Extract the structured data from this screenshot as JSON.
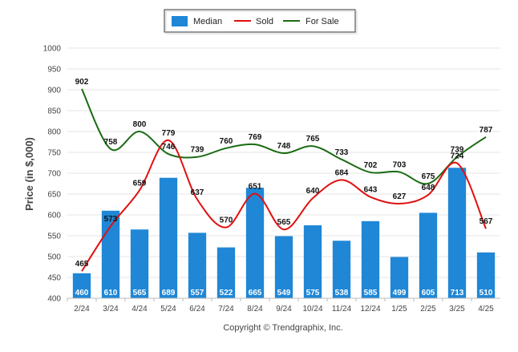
{
  "chart_data": {
    "type": "bar",
    "categories": [
      "2/24",
      "3/24",
      "4/24",
      "5/24",
      "6/24",
      "7/24",
      "8/24",
      "9/24",
      "10/24",
      "11/24",
      "12/24",
      "1/25",
      "2/25",
      "3/25",
      "4/25"
    ],
    "series": [
      {
        "name": "Median",
        "type": "bar",
        "color": "#1f87d6",
        "values": [
          460,
          610,
          565,
          689,
          557,
          522,
          665,
          549,
          575,
          538,
          585,
          499,
          605,
          713,
          510
        ]
      },
      {
        "name": "Sold",
        "type": "line",
        "color": "#e01010",
        "values": [
          465,
          573,
          659,
          779,
          637,
          570,
          651,
          565,
          640,
          684,
          643,
          627,
          648,
          724,
          567
        ]
      },
      {
        "name": "For Sale",
        "type": "line",
        "color": "#1a6b12",
        "values": [
          902,
          758,
          800,
          746,
          739,
          760,
          769,
          748,
          765,
          733,
          702,
          703,
          675,
          739,
          787
        ]
      }
    ],
    "ylabel": "Price (in $,000)",
    "xlabel": "",
    "ylim": [
      400,
      1000
    ],
    "yticks": [
      400,
      450,
      500,
      550,
      600,
      650,
      700,
      750,
      800,
      850,
      900,
      950,
      1000
    ],
    "grid": true,
    "legend": "top-center",
    "footer": "Copyright © Trendgraphix, Inc."
  }
}
